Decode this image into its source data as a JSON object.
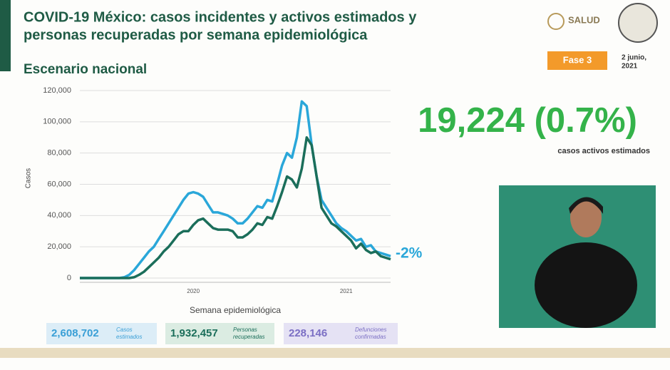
{
  "header": {
    "title_lines": [
      "COVID-19 México: casos incidentes y activos estimados y",
      "personas recuperadas por semana epidemiológica"
    ],
    "subtitle": "Escenario nacional",
    "logo": "SALUD",
    "phase": "Fase 3",
    "date_lines": [
      "2 junio,",
      "2021"
    ]
  },
  "chart_data": {
    "type": "line",
    "y_label": "Casos",
    "x_label": "Semana epidemiológica",
    "annotation": "-2%",
    "categories": [
      null,
      null,
      null,
      null,
      null,
      null,
      null,
      null,
      null,
      null,
      null,
      null,
      null,
      null,
      null,
      null,
      null,
      null,
      null,
      null,
      null,
      null,
      null,
      "2020",
      null,
      null,
      null,
      null,
      null,
      null,
      null,
      null,
      null,
      null,
      null,
      null,
      null,
      null,
      null,
      null,
      null,
      null,
      null,
      null,
      null,
      null,
      null,
      null,
      null,
      null,
      null,
      null,
      null,
      null,
      "2021",
      null,
      null,
      null,
      null,
      null,
      null,
      null,
      null,
      null
    ],
    "series": [
      {
        "color": "#2aa7d9",
        "values": [
          0,
          0,
          0,
          0,
          0,
          0,
          0,
          0,
          0,
          500,
          2000,
          5000,
          9000,
          13000,
          17000,
          20000,
          25000,
          30000,
          35000,
          40000,
          45000,
          50000,
          54000,
          55000,
          54000,
          52000,
          47000,
          42000,
          42000,
          41000,
          40000,
          38000,
          35000,
          35000,
          38000,
          42000,
          46000,
          45000,
          50000,
          49000,
          60000,
          72000,
          80000,
          77000,
          90000,
          113000,
          110000,
          85000,
          65000,
          50000,
          45000,
          40000,
          35000,
          32000,
          30000,
          27000,
          24000,
          25000,
          20000,
          21000,
          17000,
          16000,
          15000,
          14000
        ]
      },
      {
        "color": "#1b6e5a",
        "values": [
          0,
          0,
          0,
          0,
          0,
          0,
          0,
          0,
          0,
          0,
          0,
          500,
          2000,
          4000,
          7000,
          10000,
          13000,
          17000,
          20000,
          24000,
          28000,
          30000,
          30000,
          34000,
          37000,
          38000,
          35000,
          32000,
          31000,
          31000,
          31000,
          30000,
          26000,
          26000,
          28000,
          31000,
          35000,
          34000,
          39000,
          38000,
          46000,
          55000,
          65000,
          63000,
          58000,
          70000,
          90000,
          85000,
          65000,
          45000,
          40000,
          35000,
          33000,
          30000,
          27000,
          24000,
          19000,
          22000,
          18000,
          16000,
          17000,
          14000,
          13000,
          12000
        ]
      }
    ],
    "ylim": [
      0,
      120000
    ],
    "yticks": [
      0,
      {
        "value": 20000,
        "label": "20,000"
      },
      {
        "value": 40000,
        "label": "40,000"
      },
      {
        "value": 60000,
        "label": "60,000"
      },
      {
        "value": 80000,
        "label": "80,000"
      },
      {
        "value": 100000,
        "label": "100,000"
      },
      {
        "value": 120000,
        "label": "120,000"
      }
    ],
    "grid": true
  },
  "highlight": {
    "value": "19,224 (0.7%)",
    "caption": "casos activos estimados"
  },
  "totals": [
    {
      "value": "2,608,702",
      "label_lines": [
        "Casos",
        "estimados"
      ]
    },
    {
      "value": "1,932,457",
      "label_lines": [
        "Personas",
        "recuperadas"
      ]
    },
    {
      "value": "228,146",
      "label_lines": [
        "Defunciones",
        "confirmadas"
      ]
    }
  ]
}
